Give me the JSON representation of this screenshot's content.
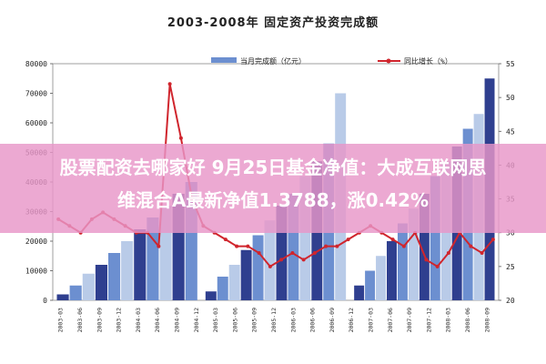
{
  "chart_data": {
    "type": "bar+line",
    "title": "2003-2008年 固定资产投资完成额",
    "legend": {
      "placement": "top",
      "bar_label": "当月完成额（亿元）",
      "line_label": "同比增长（%）"
    },
    "y_left": {
      "range": [
        0,
        80000
      ],
      "ticks": [
        "0",
        "10000",
        "20000",
        "30000",
        "40000",
        "50000",
        "60000",
        "70000",
        "80000"
      ]
    },
    "y_right": {
      "range": [
        20,
        55
      ],
      "ticks": [
        "20",
        "25",
        "30",
        "35",
        "40",
        "45",
        "50",
        "55"
      ]
    },
    "x_tick_labels": [
      "2003-03",
      "2003-06",
      "2003-09",
      "2003-12",
      "2004-03",
      "2004-06",
      "2004-09",
      "2004-12",
      "2005-03",
      "2005-06",
      "2005-09",
      "2005-12",
      "2006-03",
      "2006-06",
      "2006-09",
      "2006-12",
      "2007-03",
      "2007-06",
      "2007-09",
      "2007-12",
      "2008-03",
      "2008-06",
      "2008-09"
    ],
    "bar_colors": [
      "#2f3f8f",
      "#6c8fd0",
      "#b9cbe8"
    ],
    "line_color": "#d0252d",
    "bars": [
      {
        "values": [
          2000,
          5000,
          9000,
          12000,
          16000,
          20000,
          24000,
          28000,
          32000,
          36000,
          40000
        ]
      },
      {
        "values": [
          3000,
          8000,
          12000,
          17000,
          22000,
          27000,
          32000,
          36000,
          42000,
          47000,
          53000,
          70000
        ]
      },
      {
        "values": [
          5000,
          10000,
          15000,
          20000,
          26000,
          31000,
          36000,
          42000,
          47000,
          52000,
          58000,
          63000,
          75000
        ]
      }
    ],
    "line_values": [
      32,
      31,
      30,
      32,
      33,
      32,
      31,
      30,
      30,
      28,
      52,
      44,
      35,
      31,
      30,
      29,
      28,
      28,
      27,
      25,
      26,
      27,
      26,
      27,
      28,
      28,
      29,
      30,
      31,
      30,
      29,
      28,
      30,
      26,
      25,
      27,
      30,
      28,
      27,
      29
    ]
  },
  "overlay": {
    "line1": "股票配资去哪家好 9月25日基金净值：大成互联网思",
    "line2": "维混合A最新净值1.3788，涨0.42%"
  }
}
